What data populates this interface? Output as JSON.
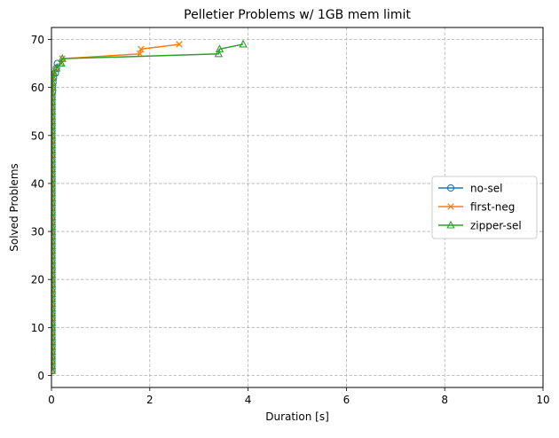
{
  "chart_data": {
    "type": "line",
    "title": "Pelletier Problems w/ 1GB mem limit",
    "xlabel": "Duration [s]",
    "ylabel": "Solved Problems",
    "xlim": [
      0,
      10
    ],
    "ylim": [
      -2.5,
      72.5
    ],
    "xticks": [
      0,
      2,
      4,
      6,
      8,
      10
    ],
    "yticks": [
      0,
      10,
      20,
      30,
      40,
      50,
      60,
      70
    ],
    "grid": true,
    "grid_style": "dashed",
    "legend_position": "center-right",
    "series": [
      {
        "name": "no-sel",
        "color": "#1f77b4",
        "marker": "circle",
        "x": [
          0.01,
          0.01,
          0.01,
          0.01,
          0.01,
          0.01,
          0.01,
          0.01,
          0.01,
          0.01,
          0.01,
          0.01,
          0.01,
          0.01,
          0.01,
          0.01,
          0.01,
          0.01,
          0.01,
          0.01,
          0.01,
          0.01,
          0.01,
          0.01,
          0.01,
          0.01,
          0.01,
          0.01,
          0.01,
          0.01,
          0.01,
          0.01,
          0.01,
          0.01,
          0.01,
          0.01,
          0.01,
          0.01,
          0.01,
          0.01,
          0.01,
          0.01,
          0.01,
          0.01,
          0.01,
          0.01,
          0.01,
          0.01,
          0.01,
          0.01,
          0.01,
          0.01,
          0.01,
          0.01,
          0.01,
          0.01,
          0.01,
          0.01,
          0.02,
          0.02,
          0.03,
          0.04,
          0.08,
          0.1,
          0.12
        ],
        "y": [
          1,
          2,
          3,
          4,
          5,
          6,
          7,
          8,
          9,
          10,
          11,
          12,
          13,
          14,
          15,
          16,
          17,
          18,
          19,
          20,
          21,
          22,
          23,
          24,
          25,
          26,
          27,
          28,
          29,
          30,
          31,
          32,
          33,
          34,
          35,
          36,
          37,
          38,
          39,
          40,
          41,
          42,
          43,
          44,
          45,
          46,
          47,
          48,
          49,
          50,
          51,
          52,
          53,
          54,
          55,
          56,
          57,
          58,
          59,
          60,
          61,
          62,
          63,
          64,
          65
        ]
      },
      {
        "name": "first-neg",
        "color": "#ff7f0e",
        "marker": "x",
        "x": [
          0.01,
          0.01,
          0.01,
          0.01,
          0.01,
          0.01,
          0.01,
          0.01,
          0.01,
          0.01,
          0.01,
          0.01,
          0.01,
          0.01,
          0.01,
          0.01,
          0.01,
          0.01,
          0.01,
          0.01,
          0.01,
          0.01,
          0.01,
          0.01,
          0.01,
          0.01,
          0.01,
          0.01,
          0.01,
          0.01,
          0.01,
          0.01,
          0.01,
          0.01,
          0.01,
          0.01,
          0.01,
          0.01,
          0.01,
          0.01,
          0.01,
          0.01,
          0.01,
          0.01,
          0.01,
          0.01,
          0.01,
          0.01,
          0.01,
          0.01,
          0.01,
          0.01,
          0.01,
          0.01,
          0.01,
          0.01,
          0.01,
          0.01,
          0.01,
          0.02,
          0.02,
          0.03,
          0.05,
          0.1,
          0.2,
          0.22,
          1.8,
          1.82,
          2.6
        ],
        "y": [
          1,
          2,
          3,
          4,
          5,
          6,
          7,
          8,
          9,
          10,
          11,
          12,
          13,
          14,
          15,
          16,
          17,
          18,
          19,
          20,
          21,
          22,
          23,
          24,
          25,
          26,
          27,
          28,
          29,
          30,
          31,
          32,
          33,
          34,
          35,
          36,
          37,
          38,
          39,
          40,
          41,
          42,
          43,
          44,
          45,
          46,
          47,
          48,
          49,
          50,
          51,
          52,
          53,
          54,
          55,
          56,
          57,
          58,
          59,
          60,
          61,
          62,
          63,
          64,
          65,
          66,
          67,
          68,
          69
        ]
      },
      {
        "name": "zipper-sel",
        "color": "#2ca02c",
        "marker": "triangle",
        "x": [
          0.01,
          0.01,
          0.01,
          0.01,
          0.01,
          0.01,
          0.01,
          0.01,
          0.01,
          0.01,
          0.01,
          0.01,
          0.01,
          0.01,
          0.01,
          0.01,
          0.01,
          0.01,
          0.01,
          0.01,
          0.01,
          0.01,
          0.01,
          0.01,
          0.01,
          0.01,
          0.01,
          0.01,
          0.01,
          0.01,
          0.01,
          0.01,
          0.01,
          0.01,
          0.01,
          0.01,
          0.01,
          0.01,
          0.01,
          0.01,
          0.01,
          0.01,
          0.01,
          0.01,
          0.01,
          0.01,
          0.01,
          0.01,
          0.01,
          0.01,
          0.01,
          0.01,
          0.01,
          0.01,
          0.01,
          0.01,
          0.01,
          0.01,
          0.01,
          0.02,
          0.02,
          0.03,
          0.05,
          0.1,
          0.2,
          0.22,
          3.4,
          3.42,
          3.9
        ],
        "y": [
          1,
          2,
          3,
          4,
          5,
          6,
          7,
          8,
          9,
          10,
          11,
          12,
          13,
          14,
          15,
          16,
          17,
          18,
          19,
          20,
          21,
          22,
          23,
          24,
          25,
          26,
          27,
          28,
          29,
          30,
          31,
          32,
          33,
          34,
          35,
          36,
          37,
          38,
          39,
          40,
          41,
          42,
          43,
          44,
          45,
          46,
          47,
          48,
          49,
          50,
          51,
          52,
          53,
          54,
          55,
          56,
          57,
          58,
          59,
          60,
          61,
          62,
          63,
          64,
          65,
          66,
          67,
          68,
          69
        ]
      }
    ]
  }
}
